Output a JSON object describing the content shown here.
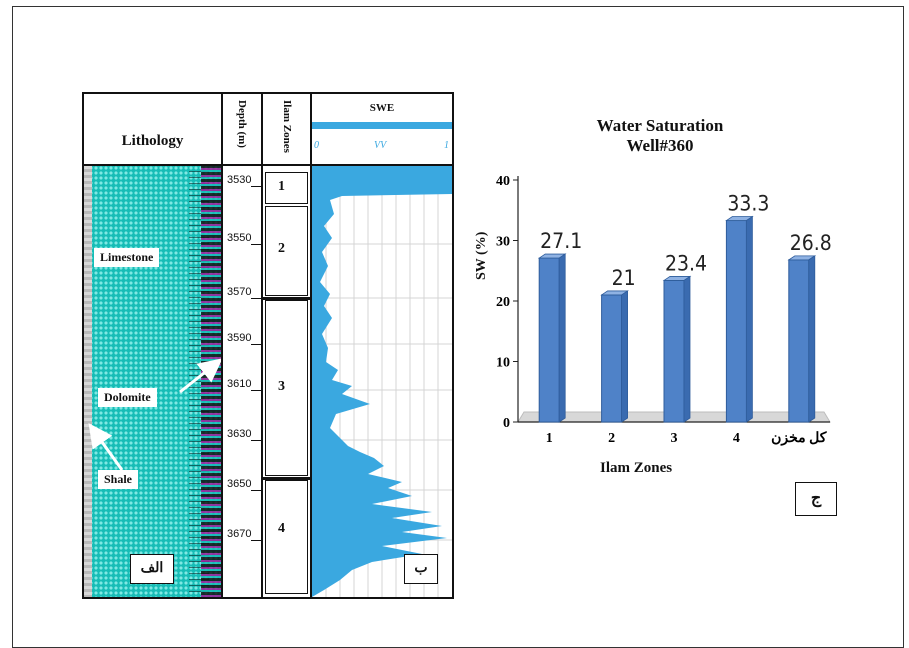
{
  "log": {
    "lithology_header": "Lithology",
    "depth_header": "Depth (m)",
    "zone_header": "Ilam Zones",
    "swe_header": "SWE",
    "swe_scale": [
      "0",
      "VV",
      "1"
    ],
    "depth_ticks": [
      "3530",
      "3550",
      "3570",
      "3590",
      "3610",
      "3630",
      "3650",
      "3670"
    ],
    "zones": [
      "1",
      "2",
      "3",
      "4"
    ],
    "labels": {
      "limestone": "Limestone",
      "dolomite": "Dolomite",
      "shale": "Shale"
    },
    "panel_letter_a": "الف",
    "panel_letter_b": "ب",
    "colors": {
      "limestone": "#17bdb6",
      "dolomite": "#a01d9a",
      "swe_curve": "#3aa8e0"
    }
  },
  "panel_letter_c": "ج",
  "chart_data": {
    "type": "bar",
    "title": "Water Saturation",
    "subtitle": "Well#360",
    "categories": [
      "1",
      "2",
      "3",
      "4",
      "کل مخزن"
    ],
    "values": [
      27.1,
      21,
      23.4,
      33.3,
      26.8
    ],
    "data_labels": [
      "27.1",
      "21",
      "23.4",
      "33.3",
      "26.8"
    ],
    "xlabel": "Ilam Zones",
    "ylabel": "SW  (%)",
    "ylim": [
      0,
      40
    ],
    "yticks": [
      "0",
      "10",
      "20",
      "30",
      "40"
    ],
    "grid": false,
    "bar_color": "#4f82c8"
  }
}
